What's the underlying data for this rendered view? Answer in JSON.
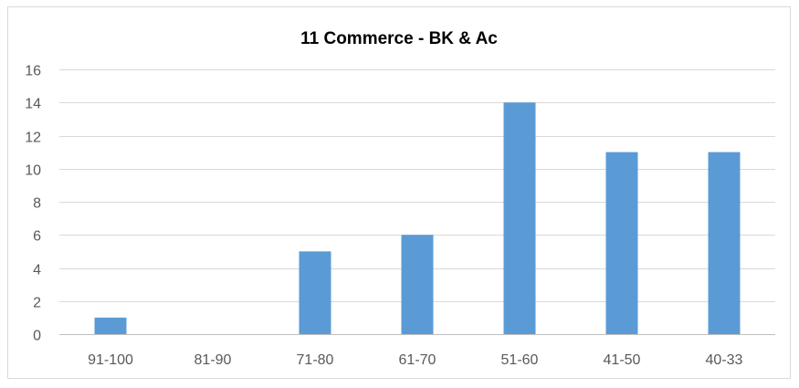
{
  "chart_data": {
    "type": "bar",
    "title": "11 Commerce - BK & Ac",
    "xlabel": "",
    "ylabel": "",
    "categories": [
      "91-100",
      "81-90",
      "71-80",
      "61-70",
      "51-60",
      "41-50",
      "40-33"
    ],
    "values": [
      1,
      0,
      5,
      6,
      14,
      11,
      11
    ],
    "ylim": [
      0,
      16
    ],
    "yticks": [
      0,
      2,
      4,
      6,
      8,
      10,
      12,
      14,
      16
    ],
    "grid": true,
    "legend": "none",
    "bar_color": "#5b9bd5"
  }
}
